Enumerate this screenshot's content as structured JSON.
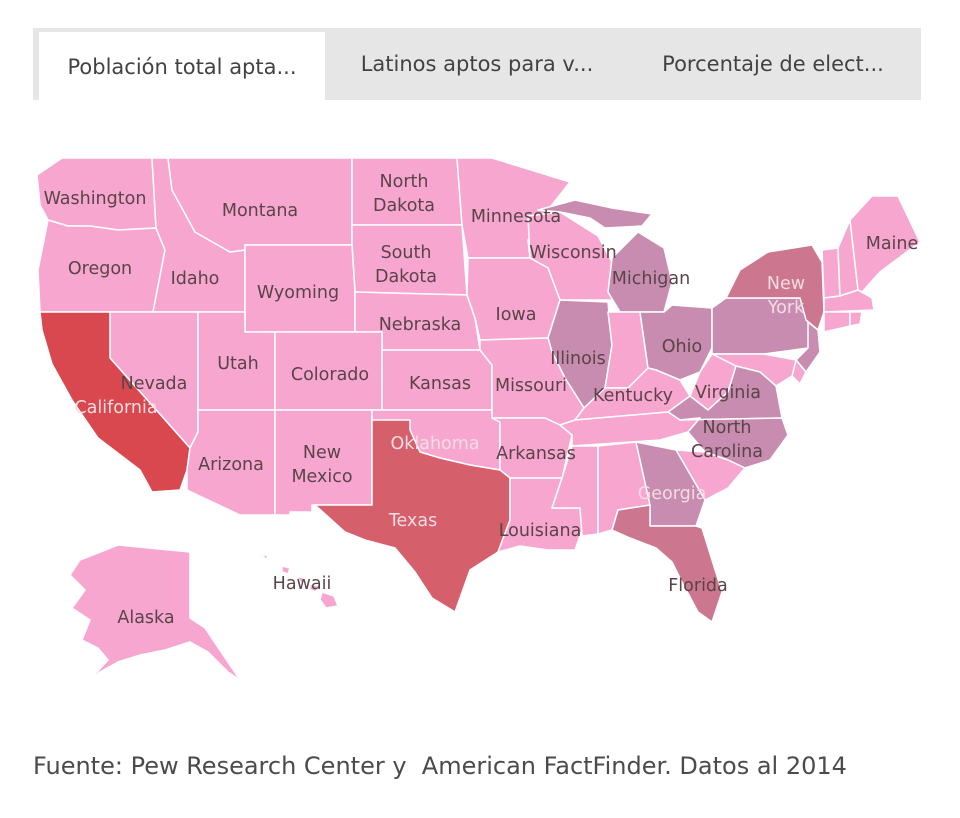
{
  "tabs": [
    {
      "label": "Población total apta...",
      "active": true
    },
    {
      "label": "Latinos aptos para v...",
      "active": false
    },
    {
      "label": "Porcentaje de elect...",
      "active": false
    }
  ],
  "colors": {
    "default": "#f7a6d0",
    "purple": "#c78cb0",
    "mauve": "#cc7690",
    "dark": "#d65f6c",
    "red": "#d9484e",
    "tab_bar": "#e6e6e6",
    "tab_active": "#ffffff"
  },
  "states": [
    {
      "id": "washington",
      "label": "Washington",
      "color": "default"
    },
    {
      "id": "oregon",
      "label": "Oregon",
      "color": "default"
    },
    {
      "id": "idaho",
      "label": "Idaho",
      "color": "default"
    },
    {
      "id": "montana",
      "label": "Montana",
      "color": "default"
    },
    {
      "id": "north-dakota",
      "label": "North\nDakota",
      "color": "default"
    },
    {
      "id": "south-dakota",
      "label": "South\nDakota",
      "color": "default"
    },
    {
      "id": "minnesota",
      "label": "Minnesota",
      "color": "default"
    },
    {
      "id": "wisconsin",
      "label": "Wisconsin",
      "color": "default"
    },
    {
      "id": "michigan",
      "label": "Michigan",
      "color": "purple"
    },
    {
      "id": "wyoming",
      "label": "Wyoming",
      "color": "default"
    },
    {
      "id": "nebraska",
      "label": "Nebraska",
      "color": "default"
    },
    {
      "id": "iowa",
      "label": "Iowa",
      "color": "default"
    },
    {
      "id": "illinois",
      "label": "Illinois",
      "color": "purple"
    },
    {
      "id": "indiana",
      "label": "",
      "color": "default"
    },
    {
      "id": "ohio",
      "label": "Ohio",
      "color": "purple"
    },
    {
      "id": "pennsylvania",
      "label": "",
      "color": "purple"
    },
    {
      "id": "new-york",
      "label": "New\nYork",
      "color": "mauve"
    },
    {
      "id": "vermont",
      "label": "",
      "color": "default"
    },
    {
      "id": "new-hampshire",
      "label": "",
      "color": "default"
    },
    {
      "id": "maine",
      "label": "Maine",
      "color": "default"
    },
    {
      "id": "massachusetts",
      "label": "",
      "color": "default"
    },
    {
      "id": "connecticut",
      "label": "",
      "color": "default"
    },
    {
      "id": "rhode-island",
      "label": "",
      "color": "default"
    },
    {
      "id": "new-jersey",
      "label": "",
      "color": "purple"
    },
    {
      "id": "delaware",
      "label": "",
      "color": "default"
    },
    {
      "id": "maryland",
      "label": "",
      "color": "default"
    },
    {
      "id": "california",
      "label": "California",
      "color": "red"
    },
    {
      "id": "nevada",
      "label": "Nevada",
      "color": "default"
    },
    {
      "id": "utah",
      "label": "Utah",
      "color": "default"
    },
    {
      "id": "colorado",
      "label": "Colorado",
      "color": "default"
    },
    {
      "id": "kansas",
      "label": "Kansas",
      "color": "default"
    },
    {
      "id": "missouri",
      "label": "Missouri",
      "color": "default"
    },
    {
      "id": "kentucky",
      "label": "Kentucky",
      "color": "default"
    },
    {
      "id": "west-virginia",
      "label": "",
      "color": "default"
    },
    {
      "id": "virginia",
      "label": "Virginia",
      "color": "purple"
    },
    {
      "id": "arizona",
      "label": "Arizona",
      "color": "default"
    },
    {
      "id": "new-mexico",
      "label": "New\nMexico",
      "color": "default"
    },
    {
      "id": "oklahoma",
      "label": "Oklahoma",
      "color": "default"
    },
    {
      "id": "arkansas",
      "label": "Arkansas",
      "color": "default"
    },
    {
      "id": "tennessee",
      "label": "",
      "color": "default"
    },
    {
      "id": "north-carolina",
      "label": "North\nCarolina",
      "color": "purple"
    },
    {
      "id": "south-carolina",
      "label": "",
      "color": "default"
    },
    {
      "id": "texas",
      "label": "Texas",
      "color": "dark"
    },
    {
      "id": "louisiana",
      "label": "Louisiana",
      "color": "default"
    },
    {
      "id": "mississippi",
      "label": "",
      "color": "default"
    },
    {
      "id": "alabama",
      "label": "",
      "color": "default"
    },
    {
      "id": "georgia",
      "label": "Georgia",
      "color": "purple"
    },
    {
      "id": "florida",
      "label": "Florida",
      "color": "mauve"
    },
    {
      "id": "alaska",
      "label": "Alaska",
      "color": "default"
    },
    {
      "id": "hawaii",
      "label": "Hawaii",
      "color": "default"
    }
  ],
  "footer": "Fuente: Pew Research Center y  American FactFinder. Datos al 2014"
}
